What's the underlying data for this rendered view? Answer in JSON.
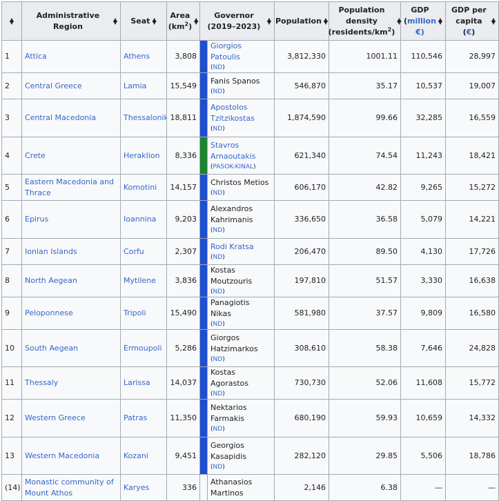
{
  "colors": {
    "nd": "#1e4fd1",
    "pasok": "#1a8630",
    "link": "#3366cc",
    "header": "#eaecf0",
    "border": "#a2a9b1"
  },
  "headers": {
    "region": "Administrative Region",
    "seat": "Seat",
    "area_a": "Area",
    "area_b": "(km",
    "area_sup": "2",
    "area_c": ")",
    "governor": "Governor (2019–2023)",
    "population": "Population",
    "density_a": "Population density",
    "density_b": "(residents/km",
    "density_sup": "2",
    "density_c": ")",
    "gdp_a": "GDP",
    "gdp_b": "(",
    "gdp_link": "million",
    "gdp_c": "€)",
    "gdppc_a": "GDP per capita",
    "gdppc_b": "(",
    "gdppc_link": "€",
    "gdppc_c": ")"
  },
  "rows": [
    {
      "no": "1",
      "region": "Attica",
      "seat": "Athens",
      "area": "3,808",
      "party_color": "#1e4fd1",
      "governor": "Giorgios Patoulis",
      "gov_link": true,
      "party": "ND",
      "population": "3,812,330",
      "density": "1001.11",
      "gdp": "110,546",
      "gdppc": "28,997"
    },
    {
      "no": "2",
      "region": "Central Greece",
      "seat": "Lamia",
      "area": "15,549",
      "party_color": "#1e4fd1",
      "governor": "Fanis Spanos",
      "gov_link": false,
      "party": "ND",
      "population": "546,870",
      "density": "35.17",
      "gdp": "10,537",
      "gdppc": "19,007"
    },
    {
      "no": "3",
      "region": "Central Macedonia",
      "seat": "Thessaloniki",
      "area": "18,811",
      "party_color": "#1e4fd1",
      "governor": "Apostolos Tzitzikostas",
      "gov_link": true,
      "party": "ND",
      "population": "1,874,590",
      "density": "99.66",
      "gdp": "32,285",
      "gdppc": "16,559"
    },
    {
      "no": "4",
      "region": "Crete",
      "seat": "Heraklion",
      "area": "8,336",
      "party_color": "#1a8630",
      "governor": "Stavros Arnaoutakis",
      "gov_link": true,
      "party": "PASOK-KINAL",
      "population": "621,340",
      "density": "74.54",
      "gdp": "11,243",
      "gdppc": "18,421"
    },
    {
      "no": "5",
      "region": "Eastern Macedonia and Thrace",
      "seat": "Komotini",
      "area": "14,157",
      "party_color": "#1e4fd1",
      "governor": "Christos Metios",
      "gov_link": false,
      "party": "ND",
      "population": "606,170",
      "density": "42.82",
      "gdp": "9,265",
      "gdppc": "15,272"
    },
    {
      "no": "6",
      "region": "Epirus",
      "seat": "Ioannina",
      "area": "9,203",
      "party_color": "#1e4fd1",
      "governor": "Alexandros Kahrimanis",
      "gov_link": false,
      "party": "ND",
      "population": "336,650",
      "density": "36.58",
      "gdp": "5,079",
      "gdppc": "14,221"
    },
    {
      "no": "7",
      "region": "Ionian Islands",
      "seat": "Corfu",
      "area": "2,307",
      "party_color": "#1e4fd1",
      "governor": "Rodi Kratsa",
      "gov_link": true,
      "party": "ND",
      "population": "206,470",
      "density": "89.50",
      "gdp": "4,130",
      "gdppc": "17,726"
    },
    {
      "no": "8",
      "region": "North Aegean",
      "seat": "Mytilene",
      "area": "3,836",
      "party_color": "#1e4fd1",
      "governor": "Kostas Moutzouris",
      "gov_link": false,
      "party": "ND",
      "population": "197,810",
      "density": "51.57",
      "gdp": "3,330",
      "gdppc": "16,638"
    },
    {
      "no": "9",
      "region": "Peloponnese",
      "seat": "Tripoli",
      "area": "15,490",
      "party_color": "#1e4fd1",
      "governor": "Panagiotis Nikas",
      "gov_link": false,
      "party": "ND",
      "population": "581,980",
      "density": "37.57",
      "gdp": "9,809",
      "gdppc": "16,580"
    },
    {
      "no": "10",
      "region": "South Aegean",
      "seat": "Ermoupoli",
      "area": "5,286",
      "party_color": "#1e4fd1",
      "governor": "Giorgos Hatzimarkos",
      "gov_link": false,
      "party": "ND",
      "population": "308,610",
      "density": "58.38",
      "gdp": "7,646",
      "gdppc": "24,828"
    },
    {
      "no": "11",
      "region": "Thessaly",
      "seat": "Larissa",
      "area": "14,037",
      "party_color": "#1e4fd1",
      "governor": "Kostas Agorastos",
      "gov_link": false,
      "party": "ND",
      "population": "730,730",
      "density": "52.06",
      "gdp": "11,608",
      "gdppc": "15,772"
    },
    {
      "no": "12",
      "region": "Western Greece",
      "seat": "Patras",
      "area": "11,350",
      "party_color": "#1e4fd1",
      "governor": "Nektarios Farmakis",
      "gov_link": false,
      "party": "ND",
      "population": "680,190",
      "density": "59.93",
      "gdp": "10,659",
      "gdppc": "14,332"
    },
    {
      "no": "13",
      "region": "Western Macedonia",
      "seat": "Kozani",
      "area": "9,451",
      "party_color": "#1e4fd1",
      "governor": "Georgios Kasapidis",
      "gov_link": false,
      "party": "ND",
      "population": "282,120",
      "density": "29.85",
      "gdp": "5,506",
      "gdppc": "18,786"
    },
    {
      "no": "(14)",
      "region": "Monastic community of Mount Athos",
      "seat": "Karyes",
      "area": "336",
      "party_color": "",
      "governor": "Athanasios Martinos",
      "gov_link": false,
      "party": "",
      "population": "2,146",
      "density": "6.38",
      "gdp": "—",
      "gdppc": "—"
    }
  ]
}
